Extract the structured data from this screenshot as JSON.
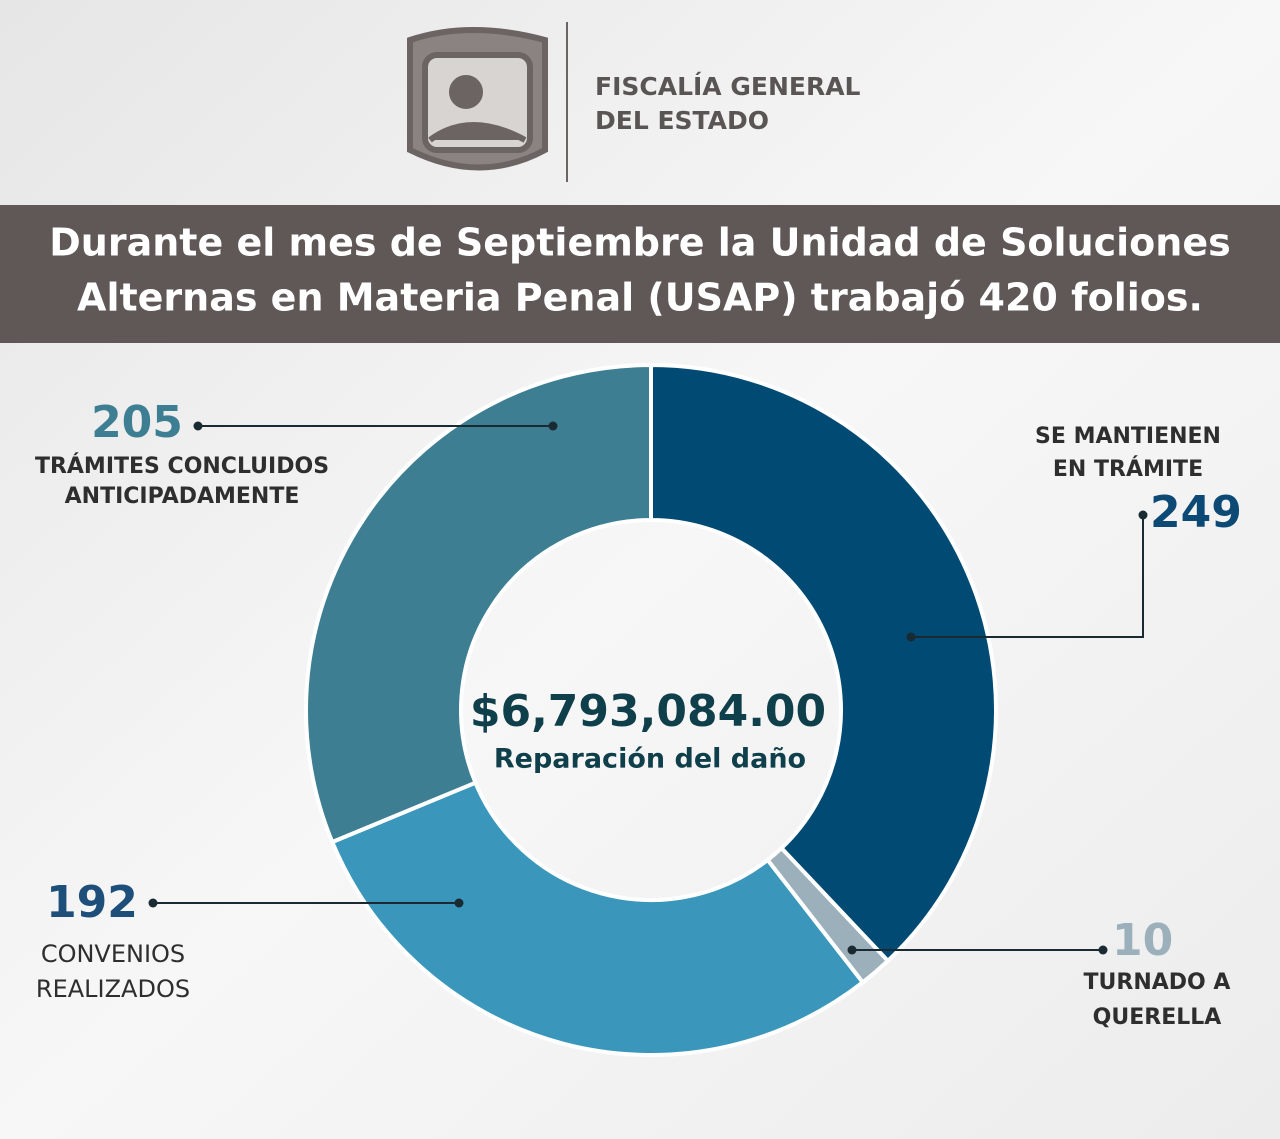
{
  "header": {
    "org_lines": [
      "FISCALÍA GENERAL",
      "DEL ESTADO"
    ]
  },
  "chart_data": {
    "type": "donut",
    "title_lines": [
      "Durante el mes de Septiembre la Unidad de Soluciones",
      "Alternas en Materia Penal (USAP) trabajó 420 folios."
    ],
    "center_value": "$6,793,084.00",
    "center_label": "Reparación del daño",
    "categories": [
      [
        "SE MANTIENEN",
        "EN TRÁMITE"
      ],
      [
        "TURNADO A",
        "QUERELLA"
      ],
      [
        "CONVENIOS",
        "REALIZADOS"
      ],
      [
        "TRÁMITES CONCLUIDOS",
        "ANTICIPADAMENTE"
      ]
    ],
    "values": [
      249,
      10,
      192,
      205
    ],
    "colors": [
      "#004a74",
      "#9bb0ba",
      "#3a97bb",
      "#3d7e92"
    ],
    "label_colors": [
      "#0c4a75",
      "#9bb0ba",
      "#1d4f7a",
      "#3d7e92"
    ]
  }
}
